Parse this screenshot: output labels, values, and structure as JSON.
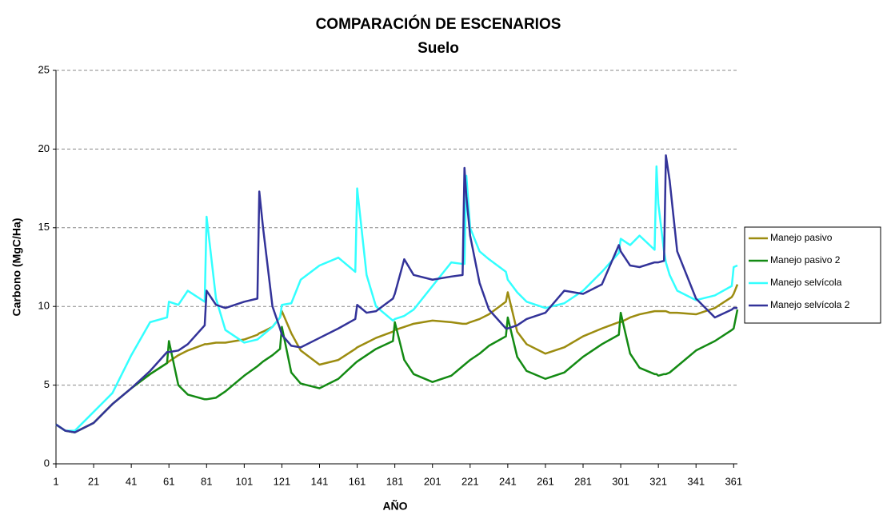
{
  "chart_data": {
    "type": "line",
    "title": "COMPARACIÓN DE ESCENARIOS",
    "subtitle": "Suelo",
    "x_label": "AÑO",
    "y_label": "Carbono (MgC/Ha)",
    "x": [
      1,
      6,
      11,
      21,
      31,
      41,
      51,
      60,
      61,
      66,
      71,
      80,
      81,
      86,
      91,
      101,
      108,
      109,
      111,
      116,
      120,
      121,
      126,
      131,
      141,
      151,
      160,
      161,
      166,
      171,
      180,
      181,
      186,
      191,
      201,
      211,
      217,
      218,
      219,
      221,
      226,
      231,
      240,
      241,
      246,
      251,
      261,
      271,
      281,
      291,
      300,
      301,
      306,
      311,
      319,
      320,
      321,
      324,
      325,
      327,
      331,
      341,
      351,
      360,
      361,
      363
    ],
    "series": [
      {
        "name": "Manejo pasivo",
        "color": "#9c8c10",
        "values": [
          2.5,
          2.1,
          2.0,
          2.6,
          3.8,
          4.8,
          5.7,
          6.4,
          6.5,
          6.9,
          7.2,
          7.6,
          7.6,
          7.7,
          7.7,
          7.9,
          8.2,
          8.3,
          8.4,
          8.7,
          9.3,
          9.7,
          8.3,
          7.2,
          6.3,
          6.6,
          7.3,
          7.4,
          7.7,
          8.0,
          8.4,
          8.5,
          8.7,
          8.9,
          9.1,
          9.0,
          8.9,
          8.9,
          8.9,
          9.0,
          9.2,
          9.5,
          10.3,
          10.9,
          8.4,
          7.6,
          7.0,
          7.4,
          8.1,
          8.6,
          9.0,
          9.0,
          9.3,
          9.5,
          9.7,
          9.7,
          9.7,
          9.7,
          9.7,
          9.6,
          9.6,
          9.5,
          9.9,
          10.6,
          10.8,
          11.4
        ]
      },
      {
        "name": "Manejo pasivo 2",
        "color": "#138a13",
        "values": [
          2.5,
          2.1,
          2.0,
          2.6,
          3.8,
          4.8,
          5.7,
          6.4,
          7.8,
          5.0,
          4.4,
          4.1,
          4.1,
          4.2,
          4.6,
          5.6,
          6.2,
          6.3,
          6.5,
          6.9,
          7.3,
          8.7,
          5.8,
          5.1,
          4.8,
          5.4,
          6.4,
          6.5,
          6.9,
          7.3,
          7.8,
          9.0,
          6.6,
          5.7,
          5.2,
          5.6,
          6.2,
          6.3,
          6.4,
          6.6,
          7.0,
          7.5,
          8.1,
          9.3,
          6.8,
          5.9,
          5.4,
          5.8,
          6.8,
          7.6,
          8.2,
          9.6,
          7.0,
          6.1,
          5.7,
          5.7,
          5.6,
          5.7,
          5.7,
          5.8,
          6.2,
          7.2,
          7.8,
          8.5,
          8.6,
          9.8
        ]
      },
      {
        "name": "Manejo selvícola",
        "color": "#33ffff",
        "values": [
          2.5,
          2.1,
          2.1,
          3.3,
          4.5,
          6.9,
          9.0,
          9.3,
          10.3,
          10.1,
          11.0,
          10.3,
          15.7,
          10.5,
          8.5,
          7.7,
          7.9,
          8.0,
          8.2,
          8.7,
          9.3,
          10.1,
          10.2,
          11.7,
          12.6,
          13.1,
          12.2,
          17.5,
          12.0,
          10.0,
          9.1,
          9.2,
          9.4,
          9.8,
          11.3,
          12.8,
          12.7,
          12.7,
          18.3,
          15.0,
          13.5,
          13.0,
          12.2,
          11.7,
          10.9,
          10.3,
          9.9,
          10.2,
          11.0,
          12.2,
          13.4,
          14.3,
          13.9,
          14.5,
          13.6,
          18.9,
          16.5,
          13.5,
          12.8,
          12.0,
          11.0,
          10.4,
          10.7,
          11.3,
          12.5,
          12.6
        ]
      },
      {
        "name": "Manejo selvícola 2",
        "color": "#333399",
        "values": [
          2.5,
          2.1,
          2.0,
          2.6,
          3.8,
          4.8,
          5.9,
          7.1,
          7.1,
          7.2,
          7.6,
          8.8,
          11.0,
          10.1,
          9.9,
          10.3,
          10.5,
          17.3,
          15.0,
          10.0,
          8.6,
          8.2,
          7.5,
          7.4,
          8.0,
          8.6,
          9.2,
          10.1,
          9.6,
          9.7,
          10.5,
          10.8,
          13.0,
          12.0,
          11.7,
          11.9,
          12.0,
          18.8,
          17.0,
          14.5,
          11.5,
          9.8,
          8.6,
          8.6,
          8.8,
          9.2,
          9.6,
          11.0,
          10.8,
          11.4,
          13.9,
          13.5,
          12.6,
          12.5,
          12.8,
          12.8,
          12.8,
          12.9,
          19.6,
          18.0,
          13.5,
          10.5,
          9.3,
          9.8,
          9.9,
          9.9
        ]
      }
    ],
    "xlim": [
      1,
      363
    ],
    "xticks": [
      1,
      21,
      41,
      61,
      81,
      101,
      121,
      141,
      161,
      181,
      201,
      221,
      241,
      261,
      281,
      301,
      321,
      341,
      361
    ],
    "ylim": [
      0,
      25
    ],
    "yticks": [
      0,
      5,
      10,
      15,
      20,
      25
    ],
    "grid": true,
    "legend": "right"
  }
}
